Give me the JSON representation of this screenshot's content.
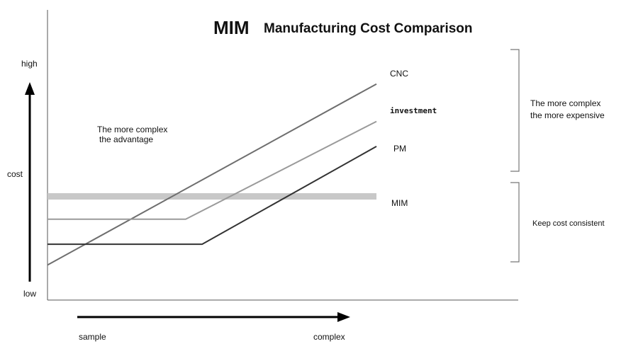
{
  "chart_data": {
    "type": "line",
    "title_brand": "MIM",
    "title": "Manufacturing Cost Comparison",
    "xlabel_low": "sample",
    "xlabel_high": "complex",
    "ylabel": "cost",
    "ytick_high": "high",
    "ytick_low": "low",
    "xlim": [
      0,
      100
    ],
    "ylim": [
      0,
      100
    ],
    "series": [
      {
        "name": "CNC",
        "color": "#6e6e6e",
        "points": [
          [
            0,
            8
          ],
          [
            100,
            95
          ]
        ]
      },
      {
        "name": "investment",
        "color": "#9a9a9a",
        "points": [
          [
            0,
            30
          ],
          [
            42,
            30
          ],
          [
            100,
            77
          ]
        ]
      },
      {
        "name": "PM",
        "color": "#333333",
        "points": [
          [
            0,
            18
          ],
          [
            47,
            18
          ],
          [
            100,
            65
          ]
        ]
      },
      {
        "name": "MIM",
        "color": "#c8c8c8",
        "points": [
          [
            0,
            41
          ],
          [
            100,
            41
          ]
        ]
      }
    ],
    "annotations": {
      "left_note_line1": "The more complex",
      "left_note_line2": "the advantage",
      "upper_bracket_line1": "The more complex",
      "upper_bracket_line2": "the more expensive",
      "lower_bracket": "Keep cost consistent"
    }
  }
}
